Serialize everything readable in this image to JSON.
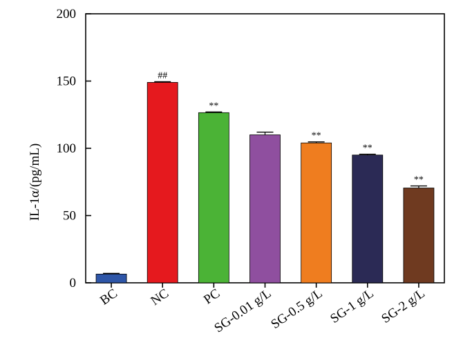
{
  "chart_data": {
    "type": "bar",
    "title": "",
    "xlabel": "",
    "ylabel": "IL-1α/(pg/mL)",
    "ylim": [
      0,
      200
    ],
    "yticks": [
      0,
      50,
      100,
      150,
      200
    ],
    "categories": [
      "BC",
      "NC",
      "PC",
      "SG-0.01 g/L",
      "SG-0.5 g/L",
      "SG-1 g/L",
      "SG-2 g/L"
    ],
    "values": [
      6.5,
      149,
      126.5,
      110,
      104,
      95,
      70.5
    ],
    "errors": [
      0.5,
      0.5,
      0.5,
      2,
      0.8,
      0.6,
      1.5
    ],
    "annotations": [
      "",
      "##",
      "**",
      "",
      "**",
      "**",
      "**"
    ],
    "colors": [
      "#2e56a8",
      "#e5191e",
      "#4bb336",
      "#8f4f9f",
      "#ef7d1f",
      "#2b2a55",
      "#6f3a20"
    ],
    "grid": false,
    "legend": "none"
  }
}
